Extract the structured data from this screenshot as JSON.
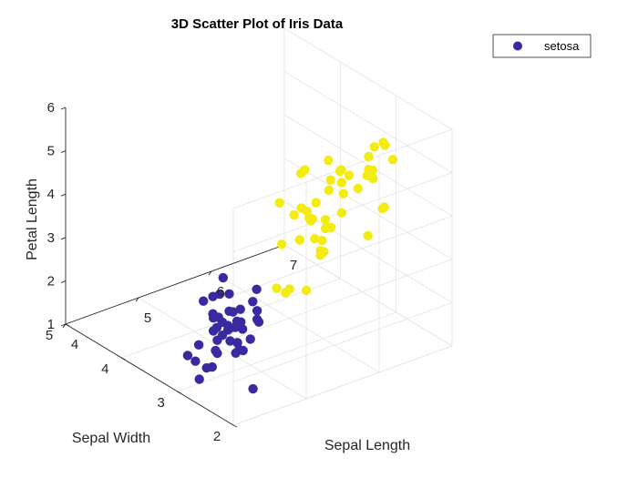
{
  "chart_data": {
    "type": "scatter",
    "dimensions": 3,
    "title": "3D Scatter Plot of Iris Data",
    "xlabel": "Sepal Length",
    "ylabel": "Sepal Width",
    "zlabel": "Petal Length",
    "xlim": [
      4,
      7
    ],
    "ylim": [
      2,
      5
    ],
    "zlim": [
      1,
      6
    ],
    "xticks": [
      "4",
      "5",
      "6",
      "7"
    ],
    "yticks": [
      "2",
      "3",
      "4",
      "5"
    ],
    "zticks": [
      "1",
      "2",
      "3",
      "4",
      "5",
      "6"
    ],
    "grid": true,
    "legend": {
      "position": "top-right",
      "entries": [
        "setosa"
      ]
    },
    "series": [
      {
        "name": "setosa",
        "color": "#3A2AA0",
        "points": [
          [
            4.4,
            2.9,
            1.4
          ],
          [
            4.6,
            3.1,
            1.5
          ],
          [
            4.8,
            3.4,
            1.6
          ],
          [
            4.9,
            3.0,
            1.4
          ],
          [
            5.0,
            3.6,
            1.4
          ],
          [
            5.1,
            3.5,
            1.4
          ],
          [
            4.7,
            3.2,
            1.3
          ],
          [
            5.4,
            3.9,
            1.7
          ],
          [
            4.6,
            3.4,
            1.4
          ],
          [
            5.0,
            3.4,
            1.5
          ],
          [
            4.9,
            3.1,
            1.5
          ],
          [
            5.4,
            3.7,
            1.5
          ],
          [
            4.8,
            3.0,
            1.4
          ],
          [
            4.3,
            3.0,
            1.1
          ],
          [
            5.8,
            4.0,
            1.2
          ],
          [
            5.7,
            4.4,
            1.5
          ],
          [
            5.4,
            3.9,
            1.3
          ],
          [
            5.1,
            3.5,
            1.4
          ],
          [
            5.7,
            3.8,
            1.7
          ],
          [
            5.1,
            3.8,
            1.5
          ],
          [
            5.4,
            3.4,
            1.7
          ],
          [
            5.1,
            3.7,
            1.5
          ],
          [
            4.6,
            3.6,
            1.0
          ],
          [
            5.1,
            3.3,
            1.7
          ],
          [
            4.8,
            3.4,
            1.9
          ],
          [
            5.0,
            3.0,
            1.6
          ],
          [
            5.0,
            3.4,
            1.6
          ],
          [
            5.2,
            3.5,
            1.5
          ],
          [
            5.2,
            3.4,
            1.4
          ],
          [
            4.7,
            3.2,
            1.6
          ],
          [
            4.8,
            3.1,
            1.6
          ],
          [
            5.4,
            3.4,
            1.5
          ],
          [
            5.2,
            4.1,
            1.5
          ],
          [
            5.5,
            4.2,
            1.4
          ],
          [
            4.9,
            3.1,
            1.5
          ],
          [
            5.0,
            3.2,
            1.2
          ],
          [
            5.5,
            3.5,
            1.3
          ],
          [
            4.4,
            3.0,
            1.3
          ],
          [
            5.1,
            3.4,
            1.5
          ],
          [
            5.0,
            3.5,
            1.3
          ],
          [
            4.5,
            2.3,
            1.3
          ],
          [
            4.4,
            3.2,
            1.3
          ],
          [
            5.0,
            3.5,
            1.6
          ],
          [
            5.1,
            3.8,
            1.9
          ],
          [
            5.3,
            3.7,
            1.5
          ]
        ]
      },
      {
        "name": "",
        "color": "#F2EC12",
        "points": [
          [
            5.1,
            2.5,
            3.0
          ],
          [
            5.7,
            2.6,
            3.5
          ],
          [
            6.0,
            2.2,
            4.0
          ],
          [
            5.6,
            2.9,
            3.6
          ],
          [
            5.8,
            2.7,
            4.1
          ],
          [
            6.2,
            2.2,
            4.5
          ],
          [
            5.6,
            2.5,
            3.9
          ],
          [
            5.9,
            3.2,
            4.8
          ],
          [
            6.1,
            2.8,
            4.0
          ],
          [
            6.3,
            2.5,
            4.9
          ],
          [
            6.1,
            2.8,
            4.7
          ],
          [
            6.4,
            2.9,
            4.3
          ],
          [
            6.6,
            3.0,
            4.4
          ],
          [
            6.8,
            2.8,
            4.8
          ],
          [
            6.7,
            3.0,
            5.0
          ],
          [
            6.0,
            2.9,
            4.5
          ],
          [
            5.7,
            2.6,
            3.5
          ],
          [
            5.5,
            2.4,
            3.8
          ],
          [
            5.5,
            2.4,
            3.7
          ],
          [
            5.8,
            2.7,
            3.9
          ],
          [
            6.0,
            2.7,
            5.1
          ],
          [
            5.4,
            3.0,
            4.5
          ],
          [
            6.0,
            3.4,
            4.5
          ],
          [
            6.7,
            3.1,
            4.7
          ],
          [
            6.3,
            2.3,
            4.4
          ],
          [
            5.6,
            3.0,
            4.1
          ],
          [
            5.5,
            2.5,
            4.0
          ],
          [
            5.5,
            2.6,
            4.4
          ],
          [
            6.1,
            3.0,
            4.6
          ],
          [
            5.8,
            2.6,
            4.0
          ],
          [
            5.0,
            2.3,
            3.3
          ],
          [
            5.6,
            2.7,
            4.2
          ],
          [
            5.7,
            3.0,
            4.2
          ],
          [
            5.7,
            2.9,
            4.2
          ],
          [
            6.2,
            2.9,
            4.3
          ],
          [
            5.1,
            2.5,
            3.0
          ],
          [
            5.7,
            2.8,
            4.1
          ],
          [
            7.0,
            3.2,
            4.7
          ],
          [
            6.4,
            3.2,
            4.5
          ],
          [
            6.9,
            3.1,
            4.9
          ],
          [
            6.5,
            2.8,
            4.6
          ],
          [
            6.3,
            3.3,
            4.7
          ],
          [
            4.9,
            2.4,
            3.3
          ],
          [
            6.6,
            2.9,
            4.6
          ],
          [
            5.2,
            2.7,
            3.9
          ],
          [
            5.0,
            2.0,
            3.5
          ],
          [
            5.9,
            3.0,
            4.2
          ],
          [
            6.7,
            3.1,
            4.4
          ],
          [
            5.6,
            2.9,
            3.6
          ],
          [
            6.2,
            2.8,
            4.8
          ]
        ]
      }
    ]
  }
}
